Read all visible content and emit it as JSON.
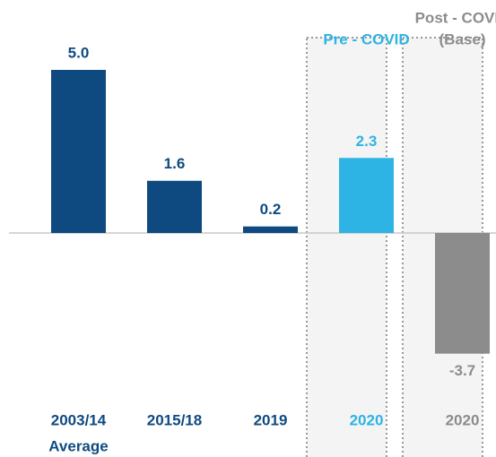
{
  "chart_data": {
    "type": "bar",
    "categories": [
      "2003/14",
      "2015/18",
      "2019",
      "2020",
      "2020"
    ],
    "category_sublabels": [
      "Average",
      null,
      null,
      null,
      null
    ],
    "scenarios": [
      null,
      null,
      null,
      [
        "Pre - COVID"
      ],
      [
        "Post - COVID",
        "(Base)"
      ]
    ],
    "values": [
      5.0,
      1.6,
      0.2,
      2.3,
      -3.7
    ],
    "value_labels": [
      "5.0",
      "1.6",
      "0.2",
      "2.3",
      "-3.7"
    ],
    "colors": [
      "#0e4a80",
      "#0e4a80",
      "#0e4a80",
      "#2db3e4",
      "#8c8c8c"
    ],
    "label_colors": [
      "#0e4a80",
      "#0e4a80",
      "#0e4a80",
      "#2db3e4",
      "#8c8c8c"
    ],
    "ylim": [
      -5,
      7
    ]
  }
}
